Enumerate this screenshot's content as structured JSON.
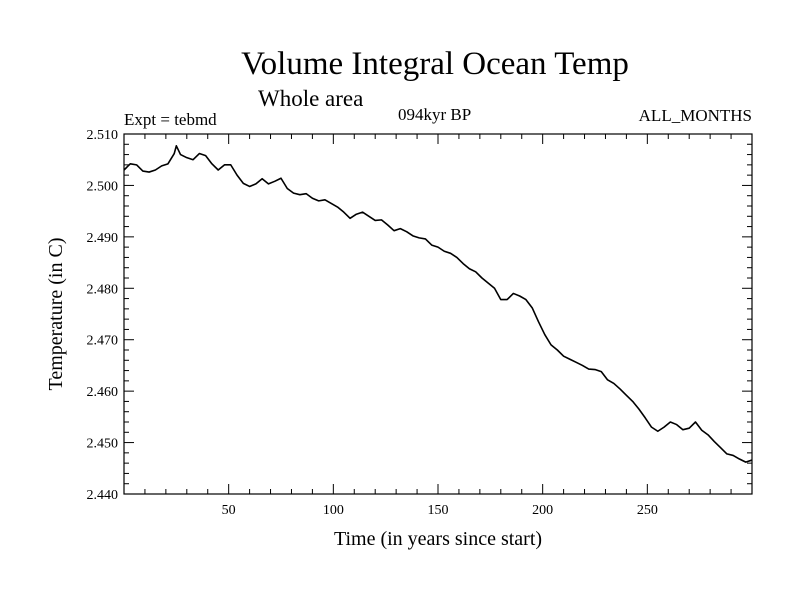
{
  "chart_data": {
    "type": "line",
    "title": "Volume Integral Ocean Temp",
    "subtitle": "Whole area",
    "experiment_label": "Expt = tebmd",
    "period_label": "094kyr BP",
    "months_label": "ALL_MONTHS",
    "xlabel": "Time (in years since start)",
    "ylabel": "Temperature (in C)",
    "xlim": [
      0,
      300
    ],
    "ylim": [
      2.44,
      2.51
    ],
    "xticks": [
      50,
      100,
      150,
      200,
      250
    ],
    "yticks": [
      2.44,
      2.45,
      2.46,
      2.47,
      2.48,
      2.49,
      2.5,
      2.51
    ],
    "ytick_labels": [
      "2.440",
      "2.450",
      "2.460",
      "2.470",
      "2.480",
      "2.490",
      "2.500",
      "2.510"
    ],
    "grid": false,
    "series": [
      {
        "name": "Volume Integral Ocean Temp",
        "x": [
          0,
          3,
          6,
          9,
          12,
          15,
          18,
          21,
          24,
          25,
          27,
          30,
          33,
          36,
          39,
          42,
          45,
          48,
          51,
          54,
          57,
          60,
          63,
          66,
          69,
          72,
          75,
          78,
          81,
          84,
          87,
          90,
          93,
          96,
          99,
          102,
          105,
          108,
          111,
          114,
          117,
          120,
          123,
          126,
          129,
          132,
          135,
          138,
          141,
          144,
          147,
          150,
          153,
          156,
          159,
          162,
          165,
          168,
          171,
          174,
          177,
          180,
          183,
          186,
          189,
          192,
          195,
          198,
          201,
          204,
          207,
          210,
          213,
          216,
          219,
          222,
          225,
          228,
          231,
          234,
          237,
          240,
          243,
          246,
          249,
          252,
          255,
          258,
          261,
          264,
          267,
          270,
          273,
          276,
          279,
          282,
          285,
          288,
          291,
          294,
          297,
          300
        ],
        "values": [
          2.503,
          2.5042,
          2.504,
          2.5028,
          2.5026,
          2.503,
          2.5038,
          2.5042,
          2.5062,
          2.5077,
          2.506,
          2.5054,
          2.505,
          2.5062,
          2.5058,
          2.5042,
          2.503,
          2.504,
          2.504,
          2.502,
          2.5004,
          2.4998,
          2.5003,
          2.5013,
          2.5003,
          2.5008,
          2.5014,
          2.4994,
          2.4985,
          2.4982,
          2.4984,
          2.4975,
          2.497,
          2.4972,
          2.4965,
          2.4958,
          2.4948,
          2.4936,
          2.4944,
          2.4948,
          2.494,
          2.4932,
          2.4933,
          2.4923,
          2.4912,
          2.4916,
          2.491,
          2.4902,
          2.4898,
          2.4896,
          2.4884,
          2.488,
          2.4872,
          2.4868,
          2.486,
          2.4848,
          2.4838,
          2.4832,
          2.482,
          2.481,
          2.48,
          2.4778,
          2.4778,
          2.479,
          2.4785,
          2.4778,
          2.4762,
          2.4735,
          2.471,
          2.469,
          2.468,
          2.4668,
          2.4662,
          2.4656,
          2.465,
          2.4643,
          2.4642,
          2.4638,
          2.4622,
          2.4615,
          2.4604,
          2.4592,
          2.458,
          2.4565,
          2.4548,
          2.453,
          2.4522,
          2.453,
          2.454,
          2.4535,
          2.4525,
          2.4528,
          2.454,
          2.4524,
          2.4515,
          2.4502,
          2.449,
          2.4478,
          2.4475,
          2.4468,
          2.4462,
          2.4466
        ]
      }
    ]
  }
}
